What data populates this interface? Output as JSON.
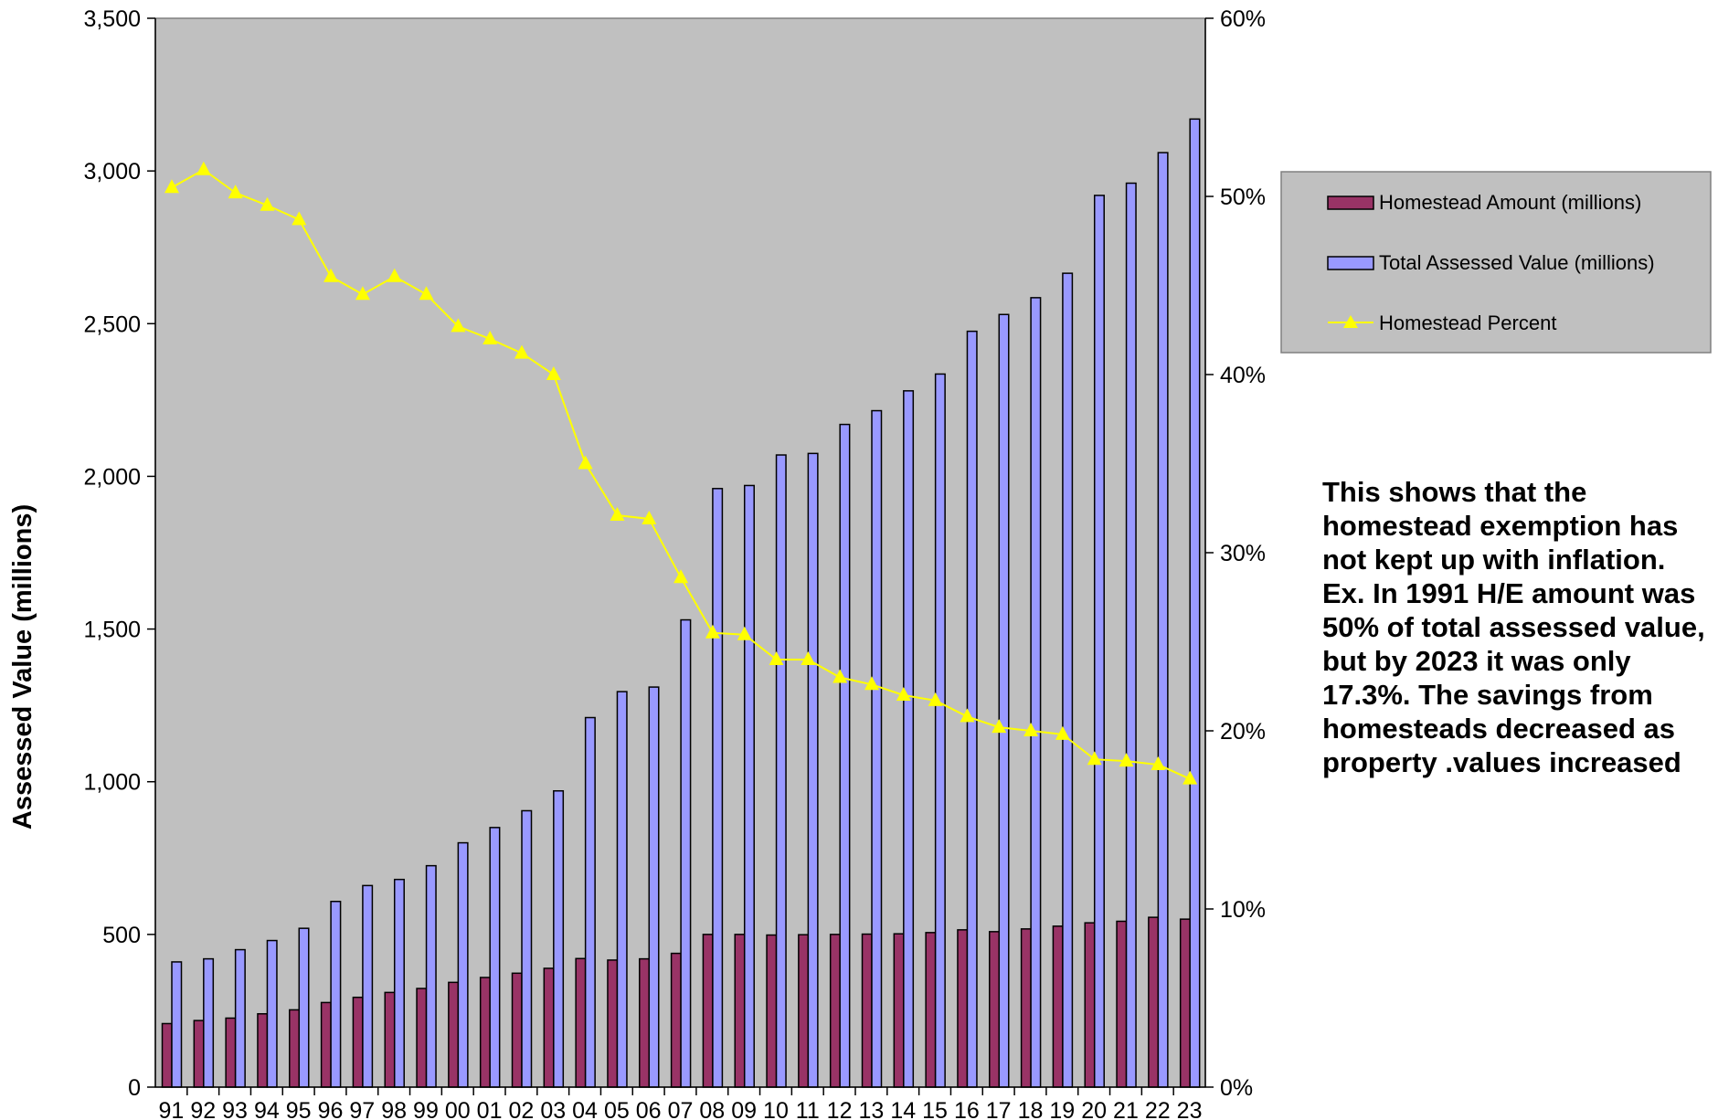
{
  "chart_data": {
    "type": "bar",
    "categories": [
      "91",
      "92",
      "93",
      "94",
      "95",
      "96",
      "97",
      "98",
      "99",
      "00",
      "01",
      "02",
      "03",
      "04",
      "05",
      "06",
      "07",
      "08",
      "09",
      "10",
      "11",
      "12",
      "13",
      "14",
      "15",
      "16",
      "17",
      "18",
      "19",
      "20",
      "21",
      "22",
      "23"
    ],
    "series": [
      {
        "name": "Homestead Amount (millions)",
        "type": "bar",
        "axis": "left",
        "color": "#993366",
        "values": [
          208,
          218,
          226,
          240,
          253,
          277,
          294,
          310,
          323,
          343,
          359,
          373,
          389,
          421,
          416,
          420,
          438,
          500,
          500,
          498,
          499,
          500,
          501,
          502,
          506,
          515,
          509,
          518,
          527,
          538,
          543,
          556,
          550
        ]
      },
      {
        "name": "Total Assessed Value (millions)",
        "type": "bar",
        "axis": "left",
        "color": "#9999FF",
        "values": [
          410,
          420,
          450,
          480,
          520,
          608,
          660,
          680,
          725,
          800,
          850,
          905,
          970,
          1210,
          1295,
          1310,
          1530,
          1960,
          1970,
          2070,
          2075,
          2170,
          2215,
          2280,
          2335,
          2475,
          2530,
          2585,
          2665,
          2920,
          2960,
          3060,
          3170
        ]
      },
      {
        "name": "Homestead Percent",
        "type": "line",
        "axis": "right",
        "color": "#FFFF00",
        "marker": "triangle",
        "values": [
          50.5,
          51.5,
          50.2,
          49.5,
          48.7,
          45.5,
          44.5,
          45.5,
          44.5,
          42.7,
          42.0,
          41.2,
          40.0,
          35.0,
          32.1,
          31.9,
          28.6,
          25.5,
          25.4,
          24.0,
          24.0,
          23.0,
          22.6,
          22.0,
          21.7,
          20.8,
          20.2,
          20.0,
          19.8,
          18.4,
          18.3,
          18.1,
          17.3
        ]
      }
    ],
    "ylabel": "Assessed Value (millions)",
    "ylim": [
      0,
      3500
    ],
    "yticks": [
      "0",
      "500",
      "1,000",
      "1,500",
      "2,000",
      "2,500",
      "3,000",
      "3,500"
    ],
    "y2lim": [
      0,
      60
    ],
    "y2ticks": [
      "0%",
      "10%",
      "20%",
      "30%",
      "40%",
      "50%",
      "60%"
    ],
    "plot_background": "#C0C0C0",
    "grid": false,
    "legend_position": "right"
  },
  "annotation": "This shows that the homestead exemption has not kept up with inflation.  Ex. In 1991 H/E amount was 50% of total assessed value, but by 2023 it was only 17.3%.  The savings from homesteads decreased as property .values increased"
}
